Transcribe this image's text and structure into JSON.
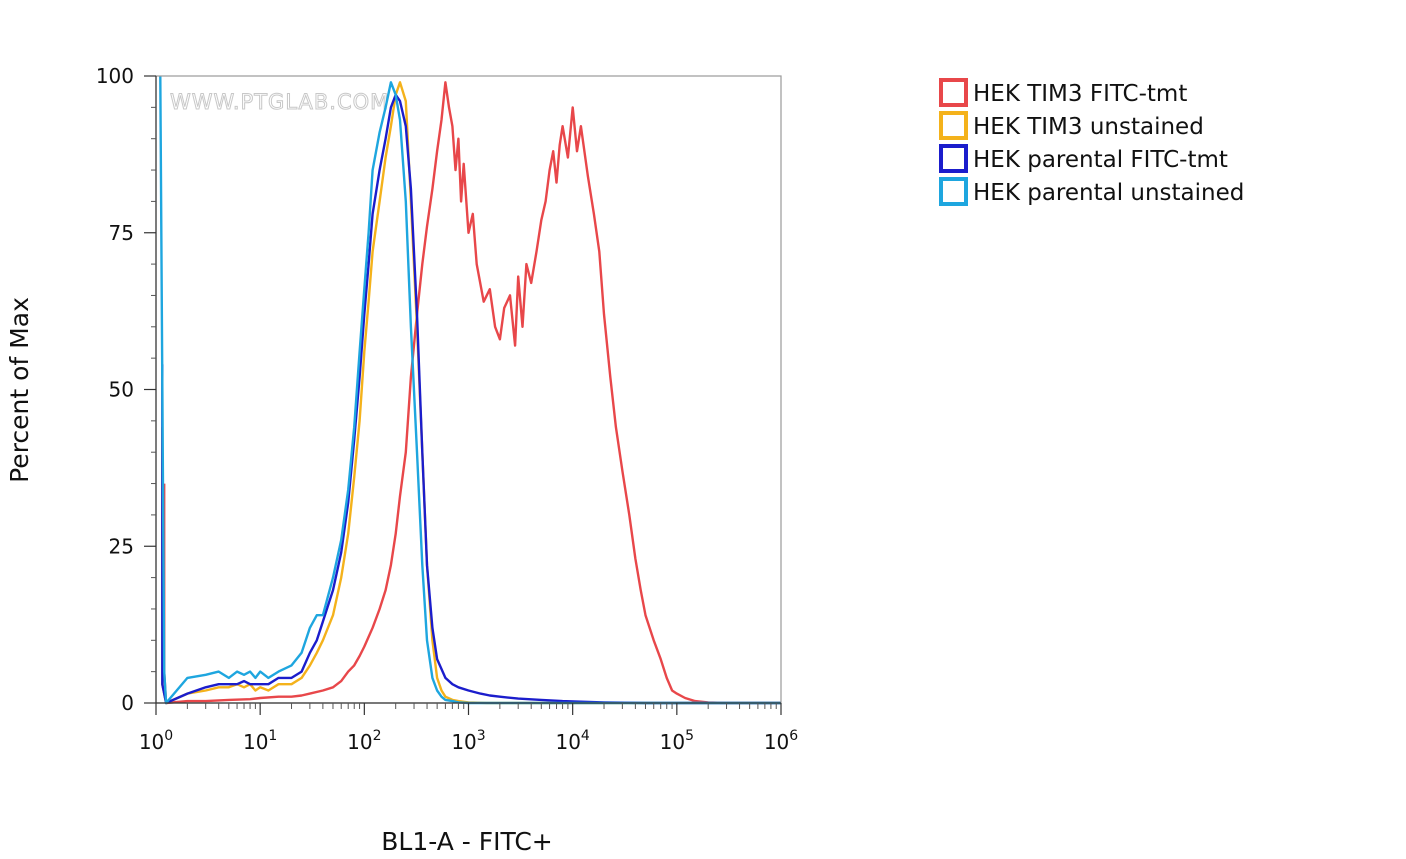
{
  "chart_data": {
    "type": "line",
    "title": "",
    "xlabel": "BL1-A - FITC+",
    "ylabel": "Percent of Max",
    "watermark": "WWW.PTGLAB.COM",
    "x_scale": "log",
    "xlim": [
      1,
      1000000
    ],
    "ylim": [
      0,
      100
    ],
    "grid": false,
    "legend_position": "right",
    "y_ticks": [
      "0",
      "25",
      "50",
      "75",
      "100"
    ],
    "x_ticks": [
      {
        "base": "10",
        "exp": "0"
      },
      {
        "base": "10",
        "exp": "1"
      },
      {
        "base": "10",
        "exp": "2"
      },
      {
        "base": "10",
        "exp": "3"
      },
      {
        "base": "10",
        "exp": "4"
      },
      {
        "base": "10",
        "exp": "5"
      },
      {
        "base": "10",
        "exp": "6"
      }
    ],
    "series": [
      {
        "name": "HEK TIM3 FITC-tmt",
        "color": "#e8474a",
        "x": [
          1.2,
          1.2,
          1.25,
          2,
          3,
          5,
          8,
          10,
          15,
          20,
          25,
          30,
          40,
          50,
          60,
          70,
          80,
          90,
          100,
          120,
          140,
          160,
          180,
          200,
          220,
          250,
          280,
          320,
          360,
          400,
          450,
          500,
          550,
          600,
          650,
          700,
          750,
          800,
          850,
          900,
          1000,
          1100,
          1200,
          1400,
          1600,
          1800,
          2000,
          2200,
          2500,
          2800,
          3000,
          3300,
          3600,
          4000,
          4500,
          5000,
          5500,
          6000,
          6500,
          7000,
          7500,
          8000,
          9000,
          10000,
          11000,
          12000,
          14000,
          16000,
          18000,
          20000,
          23000,
          26000,
          30000,
          35000,
          40000,
          45000,
          50000,
          60000,
          70000,
          80000,
          90000,
          100000,
          120000,
          150000,
          200000,
          300000,
          1000000
        ],
        "y": [
          35,
          5,
          0,
          0.3,
          0.3,
          0.5,
          0.6,
          0.8,
          1,
          1,
          1.2,
          1.5,
          2,
          2.5,
          3.5,
          5,
          6,
          7.5,
          9,
          12,
          15,
          18,
          22,
          27,
          33,
          40,
          52,
          62,
          70,
          76,
          82,
          88,
          93,
          99,
          95,
          92,
          85,
          90,
          80,
          86,
          75,
          78,
          70,
          64,
          66,
          60,
          58,
          63,
          65,
          57,
          68,
          60,
          70,
          67,
          72,
          77,
          80,
          85,
          88,
          83,
          89,
          92,
          87,
          95,
          88,
          92,
          84,
          78,
          72,
          62,
          52,
          44,
          37,
          30,
          23,
          18,
          14,
          10,
          7,
          4,
          2,
          1.5,
          0.8,
          0.3,
          0.1,
          0,
          0
        ]
      },
      {
        "name": "HEK TIM3 unstained",
        "color": "#f4b21b",
        "x": [
          1.15,
          1.15,
          1.25,
          2,
          3,
          4,
          5,
          6,
          7,
          8,
          9,
          10,
          12,
          15,
          20,
          25,
          30,
          35,
          40,
          50,
          60,
          70,
          80,
          90,
          100,
          110,
          120,
          140,
          160,
          180,
          200,
          220,
          250,
          280,
          320,
          360,
          400,
          450,
          500,
          550,
          600,
          700,
          800,
          1000,
          1500,
          2000,
          3000,
          5000,
          10000,
          1000000
        ],
        "y": [
          44,
          3,
          0,
          1.5,
          2,
          2.5,
          2.5,
          3,
          2.5,
          3,
          2,
          2.5,
          2,
          3,
          3,
          4,
          6,
          8,
          10,
          14,
          20,
          27,
          36,
          45,
          56,
          64,
          72,
          80,
          87,
          92,
          97,
          99,
          96,
          80,
          60,
          40,
          22,
          10,
          4,
          2,
          1,
          0.5,
          0.3,
          0.1,
          0,
          0,
          0,
          0,
          0,
          0
        ]
      },
      {
        "name": "HEK parental FITC-tmt",
        "color": "#1b1dcc",
        "x": [
          1.15,
          1.15,
          1.25,
          2,
          3,
          4,
          5,
          6,
          7,
          8,
          9,
          10,
          12,
          15,
          20,
          25,
          30,
          35,
          40,
          50,
          60,
          70,
          80,
          90,
          100,
          110,
          120,
          140,
          160,
          180,
          200,
          220,
          250,
          280,
          320,
          360,
          400,
          450,
          500,
          600,
          700,
          800,
          1000,
          1300,
          1600,
          2000,
          3000,
          5000,
          8000,
          12000,
          20000,
          50000,
          1000000
        ],
        "y": [
          54,
          3,
          0,
          1.5,
          2.5,
          3,
          3,
          3,
          3.5,
          3,
          3,
          3,
          3,
          4,
          4,
          5,
          8,
          10,
          13,
          18,
          24,
          32,
          42,
          52,
          62,
          70,
          78,
          85,
          90,
          95,
          97,
          96,
          92,
          82,
          62,
          40,
          22,
          12,
          7,
          4,
          3,
          2.5,
          2,
          1.5,
          1.2,
          1,
          0.7,
          0.5,
          0.3,
          0.2,
          0.1,
          0,
          0
        ]
      },
      {
        "name": "HEK parental unstained",
        "color": "#1ea6df",
        "x": [
          1.1,
          1.1,
          1.2,
          1.25,
          2,
          3,
          4,
          5,
          6,
          7,
          8,
          9,
          10,
          12,
          15,
          20,
          25,
          30,
          35,
          40,
          50,
          60,
          70,
          80,
          90,
          100,
          110,
          120,
          140,
          160,
          180,
          200,
          220,
          250,
          280,
          320,
          360,
          400,
          450,
          500,
          550,
          600,
          700,
          800,
          1000,
          1500,
          2000,
          3000,
          5000,
          10000,
          1000000
        ],
        "y": [
          100,
          100,
          5,
          0,
          4,
          4.5,
          5,
          4,
          5,
          4.5,
          5,
          4,
          5,
          4,
          5,
          6,
          8,
          12,
          14,
          14,
          20,
          26,
          34,
          44,
          56,
          66,
          75,
          85,
          91,
          95,
          99,
          97,
          93,
          80,
          60,
          40,
          22,
          10,
          4,
          2,
          1,
          0.5,
          0.3,
          0.1,
          0,
          0,
          0,
          0,
          0,
          0,
          0
        ]
      }
    ]
  }
}
